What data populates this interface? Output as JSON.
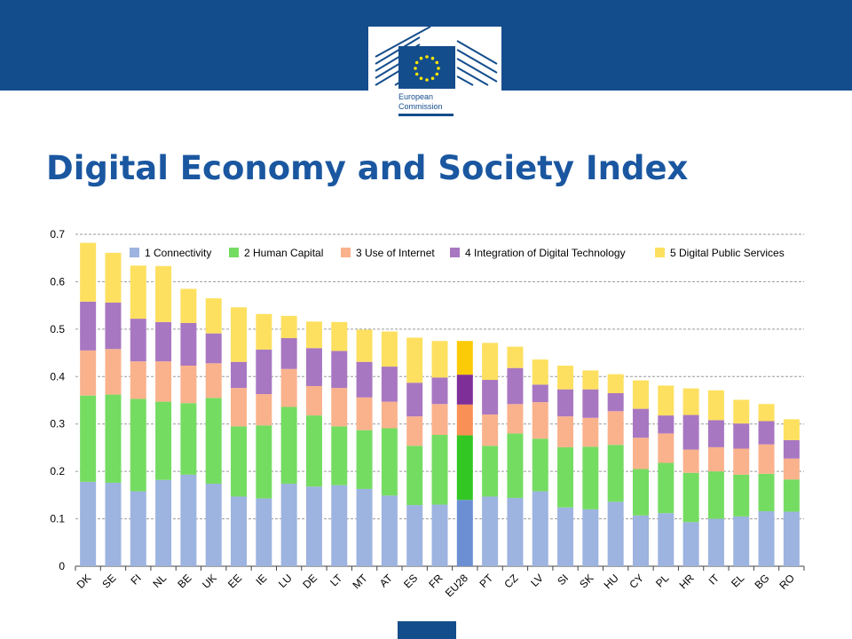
{
  "header": {
    "logo_text_line1": "European",
    "logo_text_line2": "Commission",
    "brand_color": "#144d8c"
  },
  "page_title": "Digital Economy and Society Index",
  "chart_data": {
    "type": "bar",
    "stacked": true,
    "title": "",
    "xlabel": "",
    "ylabel": "",
    "ylim": [
      0,
      0.7
    ],
    "yticks": [
      "0",
      "0.1",
      "0.2",
      "0.3",
      "0.4",
      "0.5",
      "0.6",
      "0.7"
    ],
    "grid": true,
    "legend_position": "top",
    "categories": [
      "DK",
      "SE",
      "FI",
      "NL",
      "BE",
      "UK",
      "EE",
      "IE",
      "LU",
      "DE",
      "LT",
      "MT",
      "AT",
      "ES",
      "FR",
      "EU28",
      "PT",
      "CZ",
      "LV",
      "SI",
      "SK",
      "HU",
      "CY",
      "PL",
      "HR",
      "IT",
      "EL",
      "BG",
      "RO"
    ],
    "highlight_category": "EU28",
    "series": [
      {
        "name": "1 Connectivity",
        "color": "#9db3e0",
        "highlight_color": "#6b8fd2",
        "values": [
          0.178,
          0.176,
          0.158,
          0.182,
          0.193,
          0.174,
          0.147,
          0.143,
          0.174,
          0.168,
          0.171,
          0.163,
          0.149,
          0.129,
          0.13,
          0.14,
          0.147,
          0.144,
          0.158,
          0.124,
          0.12,
          0.136,
          0.107,
          0.112,
          0.093,
          0.1,
          0.105,
          0.116,
          0.115
        ]
      },
      {
        "name": "2 Human Capital",
        "color": "#75dc62",
        "highlight_color": "#33c723",
        "values": [
          0.182,
          0.186,
          0.195,
          0.165,
          0.151,
          0.181,
          0.148,
          0.154,
          0.162,
          0.15,
          0.124,
          0.124,
          0.142,
          0.125,
          0.147,
          0.136,
          0.107,
          0.136,
          0.111,
          0.127,
          0.132,
          0.12,
          0.098,
          0.106,
          0.104,
          0.1,
          0.088,
          0.079,
          0.068
        ]
      },
      {
        "name": "3 Use of Internet",
        "color": "#fab28c",
        "highlight_color": "#f99055",
        "values": [
          0.095,
          0.096,
          0.079,
          0.085,
          0.079,
          0.073,
          0.081,
          0.066,
          0.08,
          0.062,
          0.081,
          0.069,
          0.056,
          0.062,
          0.065,
          0.065,
          0.066,
          0.062,
          0.077,
          0.065,
          0.061,
          0.071,
          0.066,
          0.062,
          0.049,
          0.051,
          0.055,
          0.062,
          0.044
        ]
      },
      {
        "name": "4 Integration of Digital Technology",
        "color": "#a877c2",
        "highlight_color": "#7f2f98",
        "values": [
          0.103,
          0.098,
          0.09,
          0.083,
          0.09,
          0.063,
          0.055,
          0.094,
          0.065,
          0.08,
          0.078,
          0.075,
          0.074,
          0.071,
          0.056,
          0.063,
          0.073,
          0.076,
          0.037,
          0.057,
          0.06,
          0.038,
          0.061,
          0.038,
          0.073,
          0.057,
          0.053,
          0.049,
          0.039
        ]
      },
      {
        "name": "5 Digital Public Services",
        "color": "#fde05f",
        "highlight_color": "#fccb07",
        "values": [
          0.124,
          0.105,
          0.112,
          0.118,
          0.072,
          0.074,
          0.115,
          0.075,
          0.047,
          0.056,
          0.061,
          0.068,
          0.074,
          0.095,
          0.077,
          0.071,
          0.078,
          0.045,
          0.053,
          0.05,
          0.04,
          0.04,
          0.06,
          0.063,
          0.056,
          0.063,
          0.05,
          0.036,
          0.044
        ]
      }
    ]
  }
}
